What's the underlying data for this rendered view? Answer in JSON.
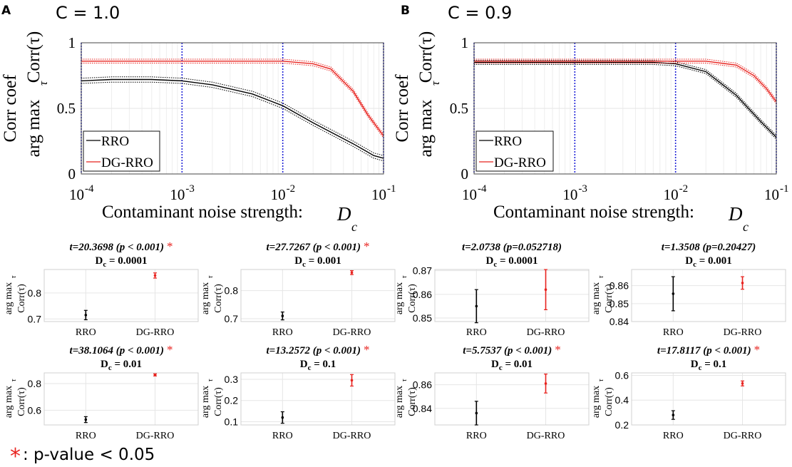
{
  "panels": [
    {
      "letter": "A",
      "condition": "C = 1.0",
      "legend": [
        "RRO",
        "DG-RRO"
      ],
      "ylabel_main": "Corr coef",
      "ylabel_sub": "arg max",
      "ylabel_tau": "τ",
      "ylabel_corr": "Corr(τ)",
      "xlabel": "Contaminant noise strength:",
      "xlabel_var": "D",
      "xlabel_sub": "c"
    },
    {
      "letter": "B",
      "condition": "C = 0.9",
      "legend": [
        "RRO",
        "DG-RRO"
      ],
      "ylabel_main": "Corr coef",
      "ylabel_sub": "arg max",
      "ylabel_tau": "τ",
      "ylabel_corr": "Corr(τ)",
      "xlabel": "Contaminant noise strength:",
      "xlabel_var": "D",
      "xlabel_sub": "c"
    }
  ],
  "footnote": {
    "star": "*",
    "text": ": p-value < 0.05"
  },
  "colors": {
    "rro": "#000000",
    "dgrro": "#e8231f",
    "vline": "#1f22d6",
    "grid": "#e6e6e6",
    "star": "#e8231f"
  },
  "chart_data": [
    {
      "id": "A-main",
      "type": "line",
      "title": "C = 1.0",
      "xscale": "log",
      "xlim": [
        0.0001,
        0.1
      ],
      "ylim": [
        0,
        1
      ],
      "xticks": [
        0.0001,
        0.001,
        0.01,
        0.1
      ],
      "xticklabels": [
        "10",
        "10",
        "10",
        "10"
      ],
      "xtickexps": [
        "-4",
        "-3",
        "-2",
        "-1"
      ],
      "yticks": [
        0,
        0.5,
        1
      ],
      "yticklabels": [
        "0",
        "0.5",
        "1"
      ],
      "vlines": [
        0.0001,
        0.001,
        0.01,
        0.1
      ],
      "xlabel": "Contaminant noise strength: Dc",
      "ylabel": "Corr coef / arg max_τ Corr(τ)",
      "legend_position": "bottom-left",
      "series": [
        {
          "name": "RRO",
          "x": [
            0.0001,
            0.0002,
            0.0005,
            0.001,
            0.002,
            0.005,
            0.01,
            0.02,
            0.05,
            0.08,
            0.1
          ],
          "values": [
            0.71,
            0.72,
            0.72,
            0.71,
            0.68,
            0.61,
            0.52,
            0.39,
            0.23,
            0.14,
            0.12
          ],
          "band": 0.02
        },
        {
          "name": "DG-RRO",
          "x": [
            0.0001,
            0.0002,
            0.0005,
            0.001,
            0.002,
            0.005,
            0.01,
            0.02,
            0.03,
            0.05,
            0.07,
            0.1
          ],
          "values": [
            0.86,
            0.86,
            0.86,
            0.86,
            0.86,
            0.86,
            0.86,
            0.84,
            0.8,
            0.63,
            0.45,
            0.29
          ],
          "band": 0.015
        }
      ]
    },
    {
      "id": "B-main",
      "type": "line",
      "title": "C = 0.9",
      "xscale": "log",
      "xlim": [
        0.0001,
        0.1
      ],
      "ylim": [
        0,
        1
      ],
      "xticks": [
        0.0001,
        0.001,
        0.01,
        0.1
      ],
      "xticklabels": [
        "10",
        "10",
        "10",
        "10"
      ],
      "xtickexps": [
        "-4",
        "-3",
        "-2",
        "-1"
      ],
      "yticks": [
        0,
        0.5,
        1
      ],
      "yticklabels": [
        "0",
        "0.5",
        "1"
      ],
      "vlines": [
        0.0001,
        0.001,
        0.01,
        0.1
      ],
      "xlabel": "Contaminant noise strength: Dc",
      "ylabel": "Corr coef / arg max_τ Corr(τ)",
      "legend_position": "bottom-left",
      "series": [
        {
          "name": "RRO",
          "x": [
            0.0001,
            0.0005,
            0.001,
            0.003,
            0.006,
            0.01,
            0.02,
            0.04,
            0.07,
            0.1
          ],
          "values": [
            0.85,
            0.85,
            0.85,
            0.85,
            0.85,
            0.84,
            0.78,
            0.6,
            0.4,
            0.28
          ],
          "band": 0.015
        },
        {
          "name": "DG-RRO",
          "x": [
            0.0001,
            0.0005,
            0.001,
            0.003,
            0.01,
            0.02,
            0.04,
            0.06,
            0.08,
            0.1
          ],
          "values": [
            0.86,
            0.86,
            0.86,
            0.86,
            0.86,
            0.86,
            0.83,
            0.75,
            0.65,
            0.55
          ],
          "band": 0.015
        }
      ]
    },
    {
      "id": "A1",
      "type": "scatter",
      "title": "t=20.3698 (p < 0.001)",
      "significant": true,
      "dc_label": "0.0001",
      "categories": [
        "RRO",
        "DG-RRO"
      ],
      "means": [
        0.715,
        0.867
      ],
      "errors": [
        0.018,
        0.01
      ],
      "ylim": [
        0.69,
        0.89
      ],
      "yticks": [
        0.7,
        0.8
      ],
      "yticklabels": [
        "0.7",
        "0.8"
      ]
    },
    {
      "id": "A2",
      "type": "scatter",
      "title": "t=27.7267 (p < 0.001)",
      "significant": true,
      "dc_label": "0.001",
      "categories": [
        "RRO",
        "DG-RRO"
      ],
      "means": [
        0.71,
        0.864
      ],
      "errors": [
        0.014,
        0.007
      ],
      "ylim": [
        0.69,
        0.875
      ],
      "yticks": [
        0.7,
        0.8
      ],
      "yticklabels": [
        "0.7",
        "0.8"
      ]
    },
    {
      "id": "B1",
      "type": "scatter",
      "title": "t=2.0738 (p=0.052718)",
      "significant": false,
      "dc_label": "0.0001",
      "categories": [
        "RRO",
        "DG-RRO"
      ],
      "means": [
        0.855,
        0.862
      ],
      "errors": [
        0.007,
        0.0085
      ],
      "ylim": [
        0.8485,
        0.8705
      ],
      "yticks": [
        0.85,
        0.86,
        0.87
      ],
      "yticklabels": [
        "0.85",
        "0.86",
        "0.87"
      ]
    },
    {
      "id": "B2",
      "type": "scatter",
      "title": "t=1.3508 (p=0.20427)",
      "significant": false,
      "dc_label": "0.001",
      "categories": [
        "RRO",
        "DG-RRO"
      ],
      "means": [
        0.8555,
        0.8615
      ],
      "errors": [
        0.0095,
        0.0035
      ],
      "ylim": [
        0.84,
        0.869
      ],
      "yticks": [
        0.84,
        0.85,
        0.86
      ],
      "yticklabels": [
        "0.84",
        "0.85",
        "0.86"
      ]
    },
    {
      "id": "A3",
      "type": "scatter",
      "title": "t=38.1064 (p < 0.001)",
      "significant": true,
      "dc_label": "0.01",
      "categories": [
        "RRO",
        "DG-RRO"
      ],
      "means": [
        0.53,
        0.865
      ],
      "errors": [
        0.022,
        0.008
      ],
      "ylim": [
        0.49,
        0.88
      ],
      "yticks": [
        0.6,
        0.8
      ],
      "yticklabels": [
        "0.6",
        "0.8"
      ]
    },
    {
      "id": "A4",
      "type": "scatter",
      "title": "t=13.2572 (p < 0.001)",
      "significant": true,
      "dc_label": "0.1",
      "categories": [
        "RRO",
        "DG-RRO"
      ],
      "means": [
        0.12,
        0.295
      ],
      "errors": [
        0.027,
        0.027
      ],
      "ylim": [
        0.085,
        0.33
      ],
      "yticks": [
        0.1,
        0.2,
        0.3
      ],
      "yticklabels": [
        "0.1",
        "0.2",
        "0.3"
      ]
    },
    {
      "id": "B3",
      "type": "scatter",
      "title": "t=5.7537 (p < 0.001)",
      "significant": true,
      "dc_label": "0.01",
      "categories": [
        "RRO",
        "DG-RRO"
      ],
      "means": [
        0.836,
        0.861
      ],
      "errors": [
        0.01,
        0.008
      ],
      "ylim": [
        0.826,
        0.87
      ],
      "yticks": [
        0.84,
        0.86
      ],
      "yticklabels": [
        "0.84",
        "0.86"
      ]
    },
    {
      "id": "B4",
      "type": "scatter",
      "title": "t=17.8117 (p < 0.001)",
      "significant": true,
      "dc_label": "0.1",
      "categories": [
        "RRO",
        "DG-RRO"
      ],
      "means": [
        0.28,
        0.535
      ],
      "errors": [
        0.035,
        0.02
      ],
      "ylim": [
        0.2,
        0.62
      ],
      "yticks": [
        0.2,
        0.4,
        0.6
      ],
      "yticklabels": [
        "0.2",
        "0.4",
        "0.6"
      ]
    }
  ]
}
